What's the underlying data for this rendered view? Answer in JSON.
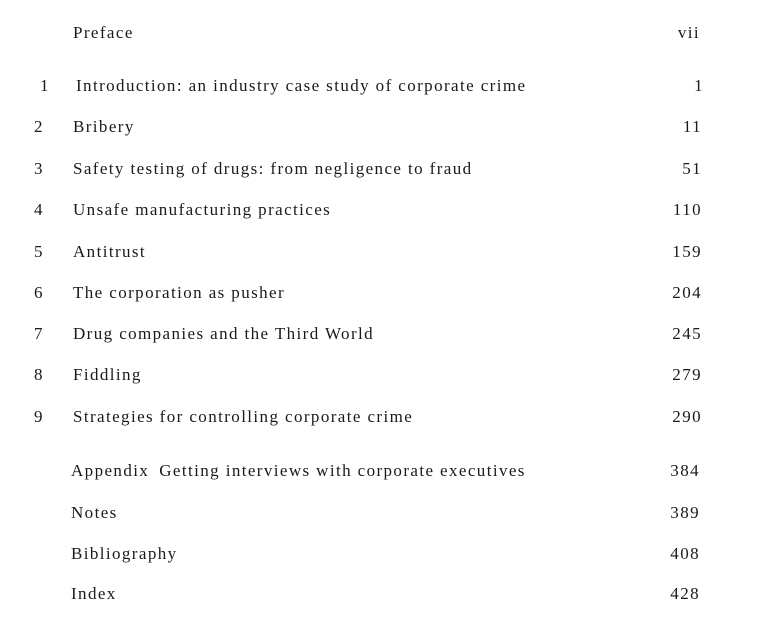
{
  "preface": {
    "title": "Preface",
    "page": "vii"
  },
  "chapters": [
    {
      "num": "1",
      "title": "Introduction: an industry case study of corporate crime",
      "page": "1"
    },
    {
      "num": "2",
      "title": "Bribery",
      "page": "11"
    },
    {
      "num": "3",
      "title": "Safety testing of drugs: from negligence to fraud",
      "page": "51"
    },
    {
      "num": "4",
      "title": "Unsafe manufacturing practices",
      "page": "110"
    },
    {
      "num": "5",
      "title": "Antitrust",
      "page": "159"
    },
    {
      "num": "6",
      "title": "The corporation as pusher",
      "page": "204"
    },
    {
      "num": "7",
      "title": "Drug companies and the Third World",
      "page": "245"
    },
    {
      "num": "8",
      "title": "Fiddling",
      "page": "279"
    },
    {
      "num": "9",
      "title": "Strategies for controlling corporate crime",
      "page": "290"
    }
  ],
  "back_matter": [
    {
      "label": "Appendix",
      "title": "Getting interviews with corporate executives",
      "page": "384"
    },
    {
      "label": "",
      "title": "Notes",
      "page": "389"
    },
    {
      "label": "",
      "title": "Bibliography",
      "page": "408"
    },
    {
      "label": "",
      "title": "Index",
      "page": "428"
    }
  ]
}
